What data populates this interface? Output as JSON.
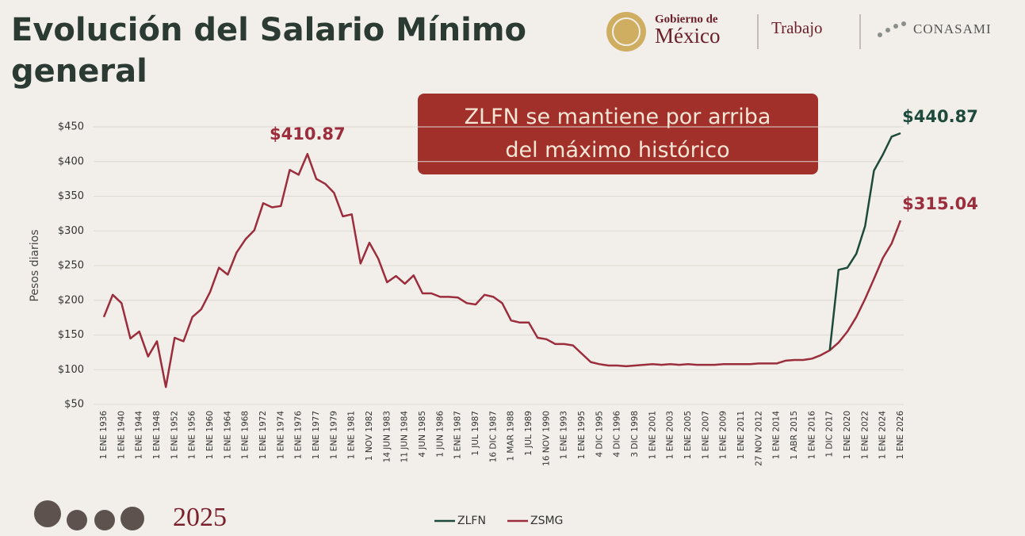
{
  "header": {
    "gov_line1": "Gobierno de",
    "gov_line2": "México",
    "ministry": "Trabajo",
    "agency": "CONASAMI",
    "year": "2025"
  },
  "chart_data": {
    "type": "line",
    "title": "Evolución del Salario Mínimo general",
    "annotation": "ZLFN se mantiene por arriba del máximo histórico",
    "y_label": "Pesos diarios",
    "ylim": [
      50,
      450
    ],
    "yticks": [
      {
        "value": 50,
        "label": "$50"
      },
      {
        "value": 100,
        "label": "$100"
      },
      {
        "value": 150,
        "label": "$150"
      },
      {
        "value": 200,
        "label": "$200"
      },
      {
        "value": 250,
        "label": "$250"
      },
      {
        "value": 300,
        "label": "$300"
      },
      {
        "value": 350,
        "label": "$350"
      },
      {
        "value": 400,
        "label": "$400"
      },
      {
        "value": 450,
        "label": "$450"
      }
    ],
    "grid": true,
    "legend": "bottom",
    "categories": [
      "1 ENE 1936",
      null,
      "1 ENE 1940",
      null,
      "1 ENE 1944",
      null,
      "1 ENE 1948",
      null,
      "1 ENE 1952",
      null,
      "1 ENE 1956",
      null,
      "1 ENE 1960",
      null,
      "1 ENE 1964",
      null,
      "1 ENE 1968",
      null,
      "1 ENE 1972",
      null,
      "1 ENE 1974",
      null,
      "1 ENE 1976",
      null,
      "1 ENE 1977",
      null,
      "1 ENE 1979",
      null,
      "1 ENE 1981",
      null,
      "1 NOV 1982",
      null,
      "14 JUN 1983",
      null,
      "11 JUN 1984",
      null,
      "4 JUN 1985",
      null,
      "1 JUN 1986",
      null,
      "1 ENE 1987",
      null,
      "1 JUL 1987",
      null,
      "16 DIC 1987",
      null,
      "1 MAR 1988",
      null,
      "1 JUL 1989",
      null,
      "16 NOV 1990",
      null,
      "1 ENE 1993",
      null,
      "1 ENE 1995",
      null,
      "4 DIC 1995",
      null,
      "4 DIC 1996",
      null,
      "3 DIC 1998",
      null,
      "1 ENE 2001",
      null,
      "1 ENE 2003",
      null,
      "1 ENE 2005",
      null,
      "1 ENE 2007",
      null,
      "1 ENE 2009",
      null,
      "1 ENE 2011",
      null,
      "27 NOV 2012",
      null,
      "1 ENE 2014",
      null,
      "1 ABR 2015",
      null,
      "1 ENE 2016",
      null,
      "1 DIC 2017",
      null,
      "1 ENE 2020",
      null,
      "1 ENE 2022",
      null,
      "1 ENE 2024",
      null,
      "1 ENE 2026"
    ],
    "series": [
      {
        "name": "ZLFN",
        "color": "#1d4a3b",
        "values": [
          null,
          null,
          null,
          null,
          null,
          null,
          null,
          null,
          null,
          null,
          null,
          null,
          null,
          null,
          null,
          null,
          null,
          null,
          null,
          null,
          null,
          null,
          null,
          null,
          null,
          null,
          null,
          null,
          null,
          null,
          null,
          null,
          null,
          null,
          null,
          null,
          null,
          null,
          null,
          null,
          null,
          null,
          null,
          null,
          null,
          null,
          null,
          null,
          null,
          null,
          null,
          null,
          null,
          null,
          null,
          null,
          null,
          null,
          null,
          null,
          null,
          null,
          null,
          null,
          null,
          null,
          null,
          null,
          null,
          null,
          null,
          null,
          null,
          null,
          null,
          null,
          null,
          null,
          null,
          null,
          null,
          null,
          128,
          244,
          247,
          267,
          307,
          387,
          410,
          436,
          440.87
        ],
        "value_labels": [
          null,
          null,
          null,
          null,
          null,
          null,
          null,
          null,
          null,
          null,
          null,
          null,
          null,
          null,
          null,
          null,
          null,
          null,
          null,
          null,
          null,
          null,
          null,
          null,
          null,
          null,
          null,
          null,
          null,
          null,
          null,
          null,
          null,
          null,
          null,
          null,
          null,
          null,
          null,
          null,
          null,
          null,
          null,
          null,
          null,
          null,
          null,
          null,
          null,
          null,
          null,
          null,
          null,
          null,
          null,
          null,
          null,
          null,
          null,
          null,
          null,
          null,
          null,
          null,
          null,
          null,
          null,
          null,
          null,
          null,
          null,
          null,
          null,
          null,
          null,
          null,
          null,
          null,
          null,
          null,
          null,
          null,
          null,
          null,
          null,
          null,
          null,
          null,
          null,
          null,
          "$440.87"
        ]
      },
      {
        "name": "ZSMG",
        "color": "#9b2d3c",
        "values": [
          176,
          208,
          196,
          145,
          155,
          119,
          141,
          75,
          146,
          141,
          176,
          187,
          212,
          247,
          237,
          269,
          288,
          301,
          340,
          334,
          336,
          388,
          381,
          410.87,
          375,
          368,
          355,
          321,
          324,
          253,
          283,
          260,
          226,
          235,
          224,
          236,
          210,
          210,
          205,
          205,
          204,
          196,
          194,
          208,
          205,
          196,
          171,
          168,
          168,
          146,
          144,
          137,
          137,
          135,
          123,
          111,
          108,
          106,
          106,
          105,
          106,
          107,
          108,
          107,
          108,
          107,
          108,
          107,
          107,
          107,
          108,
          108,
          108,
          108,
          109,
          109,
          109,
          113,
          114,
          114,
          116,
          121,
          128,
          139,
          155,
          176,
          202,
          231,
          261,
          282,
          315.04
        ],
        "value_labels": [
          null,
          null,
          null,
          null,
          null,
          null,
          null,
          null,
          null,
          null,
          null,
          null,
          null,
          null,
          null,
          null,
          null,
          null,
          null,
          null,
          null,
          null,
          null,
          "$410.87",
          null,
          null,
          null,
          null,
          null,
          null,
          null,
          null,
          null,
          null,
          null,
          null,
          null,
          null,
          null,
          null,
          null,
          null,
          null,
          null,
          null,
          null,
          null,
          null,
          null,
          null,
          null,
          null,
          null,
          null,
          null,
          null,
          null,
          null,
          null,
          null,
          null,
          null,
          null,
          null,
          null,
          null,
          null,
          null,
          null,
          null,
          null,
          null,
          null,
          null,
          null,
          null,
          null,
          null,
          null,
          null,
          null,
          null,
          null,
          null,
          null,
          null,
          null,
          null,
          null,
          null,
          "$315.04"
        ]
      }
    ]
  }
}
